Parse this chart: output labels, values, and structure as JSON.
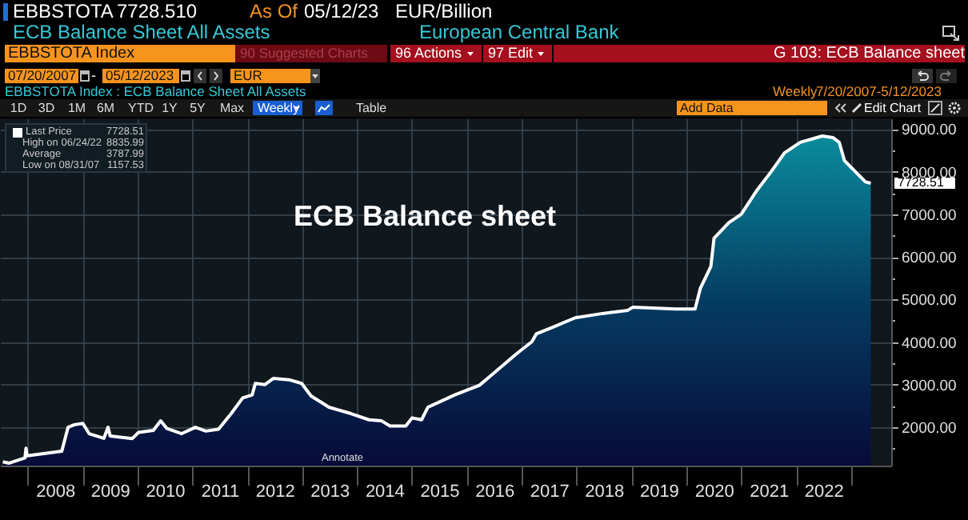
{
  "chart_data": {
    "type": "area",
    "title": "ECB Balance sheet",
    "x": [
      "2007-07-20",
      "2007-08-31",
      "2007-12-14",
      "2007-12-21",
      "2007-12-28",
      "2008-08-15",
      "2008-09-26",
      "2008-11-07",
      "2009-01-02",
      "2009-02-13",
      "2009-05-22",
      "2009-06-19",
      "2009-07-03",
      "2009-11-27",
      "2010-01-08",
      "2010-04-16",
      "2010-06-04",
      "2010-07-16",
      "2010-10-22",
      "2011-01-21",
      "2011-04-01",
      "2011-06-24",
      "2011-09-16",
      "2011-12-02",
      "2012-02-03",
      "2012-02-24",
      "2012-04-27",
      "2012-06-22",
      "2012-10-05",
      "2012-12-28",
      "2013-03-01",
      "2013-06-28",
      "2013-11-22",
      "2014-03-21",
      "2014-06-13",
      "2014-08-08",
      "2014-11-21",
      "2015-01-02",
      "2015-03-06",
      "2015-04-17",
      "2015-10-16",
      "2016-03-25",
      "2016-06-17",
      "2016-11-25",
      "2017-03-10",
      "2017-04-07",
      "2017-07-28",
      "2017-12-22",
      "2018-06-22",
      "2018-12-07",
      "2019-01-11",
      "2019-10-25",
      "2020-02-28",
      "2020-04-03",
      "2020-06-12",
      "2020-07-03",
      "2020-10-09",
      "2020-12-31",
      "2021-04-16",
      "2021-07-16",
      "2021-10-15",
      "2022-01-28",
      "2022-06-24",
      "2022-09-02",
      "2022-10-14",
      "2022-11-18",
      "2023-01-27",
      "2023-04-07",
      "2023-05-12"
    ],
    "series": [
      {
        "name": "Last Price",
        "color": "#ffffff",
        "values": [
          1190,
          1157.53,
          1280,
          1510,
          1330,
          1440,
          2000,
          2060,
          2090,
          1850,
          1740,
          2000,
          1795,
          1735,
          1880,
          1925,
          2150,
          1970,
          1850,
          2000,
          1910,
          1955,
          2320,
          2690,
          2760,
          3030,
          3000,
          3145,
          3115,
          3030,
          2735,
          2470,
          2320,
          2175,
          2150,
          2030,
          2030,
          2220,
          2175,
          2470,
          2765,
          2985,
          3235,
          3720,
          4010,
          4190,
          4350,
          4570,
          4670,
          4745,
          4820,
          4775,
          4775,
          5260,
          5775,
          6435,
          6800,
          7000,
          7570,
          7990,
          8440,
          8690,
          8835.99,
          8800,
          8690,
          8260,
          8010,
          7760,
          7728.51
        ]
      }
    ],
    "xlim": [
      "2007-07-01",
      "2023-09-25"
    ],
    "xticks": [
      {
        "value": "2008-01-01",
        "label": null
      },
      {
        "value": "2008-07-01",
        "label": "2008"
      },
      {
        "value": "2009-01-01",
        "label": null
      },
      {
        "value": "2009-07-01",
        "label": "2009"
      },
      {
        "value": "2010-01-01",
        "label": null
      },
      {
        "value": "2010-07-01",
        "label": "2010"
      },
      {
        "value": "2011-01-01",
        "label": null
      },
      {
        "value": "2011-07-01",
        "label": "2011"
      },
      {
        "value": "2012-01-01",
        "label": null
      },
      {
        "value": "2012-07-01",
        "label": "2012"
      },
      {
        "value": "2013-01-01",
        "label": null
      },
      {
        "value": "2013-07-01",
        "label": "2013"
      },
      {
        "value": "2014-01-01",
        "label": null
      },
      {
        "value": "2014-07-01",
        "label": "2014"
      },
      {
        "value": "2015-01-01",
        "label": null
      },
      {
        "value": "2015-07-01",
        "label": "2015"
      },
      {
        "value": "2016-01-01",
        "label": null
      },
      {
        "value": "2016-07-01",
        "label": "2016"
      },
      {
        "value": "2017-01-01",
        "label": null
      },
      {
        "value": "2017-07-01",
        "label": "2017"
      },
      {
        "value": "2018-01-01",
        "label": null
      },
      {
        "value": "2018-07-01",
        "label": "2018"
      },
      {
        "value": "2019-01-01",
        "label": null
      },
      {
        "value": "2019-07-01",
        "label": "2019"
      },
      {
        "value": "2020-01-01",
        "label": null
      },
      {
        "value": "2020-07-01",
        "label": "2020"
      },
      {
        "value": "2021-01-01",
        "label": null
      },
      {
        "value": "2021-07-01",
        "label": "2021"
      },
      {
        "value": "2022-01-01",
        "label": null
      },
      {
        "value": "2022-07-01",
        "label": "2022"
      },
      {
        "value": "2023-01-01",
        "label": null
      }
    ],
    "ylim": [
      1100,
      9250
    ],
    "yticks": [
      {
        "value": 1500,
        "label": null
      },
      {
        "value": 2000,
        "label": "2000.00"
      },
      {
        "value": 2500,
        "label": null
      },
      {
        "value": 3000,
        "label": "3000.00"
      },
      {
        "value": 3500,
        "label": null
      },
      {
        "value": 4000,
        "label": "4000.00"
      },
      {
        "value": 4500,
        "label": null
      },
      {
        "value": 5000,
        "label": "5000.00"
      },
      {
        "value": 5500,
        "label": null
      },
      {
        "value": 6000,
        "label": "6000.00"
      },
      {
        "value": 6500,
        "label": null
      },
      {
        "value": 7000,
        "label": "7000.00"
      },
      {
        "value": 7500,
        "label": null
      },
      {
        "value": 8000,
        "label": "8000.00"
      },
      {
        "value": 8500,
        "label": null
      },
      {
        "value": 9000,
        "label": "9000.00"
      }
    ],
    "grid": true,
    "legend": "top left",
    "annotations": [
      "EBBSTOTA",
      "7728.510",
      "As Of",
      "05/12/23",
      "EUR/Billion",
      "ECB Balance Sheet All Assets",
      "European Central Bank",
      "EBBSTOTA Index",
      "90 Suggested Charts",
      "96 Actions",
      "97 Edit",
      "G 103: ECB Balance sheet",
      "07/20/2007",
      "-",
      "05/12/2023",
      "EUR",
      "EBBSTOTA Index : ECB Balance Sheet All Assets",
      "Weekly",
      "7/20/2007-5/12/2023",
      "1D",
      "3D",
      "1M",
      "6M",
      "YTD",
      "1Y",
      "5Y",
      "Max",
      "Weekly",
      "Table",
      "Add Data",
      "Edit Chart",
      "7728.51",
      "High on 06/24/22",
      "8835.99",
      "Average",
      "3787.99",
      "Low on 08/31/07",
      "1157.53",
      "Annotate",
      {
        "text": "7728.51",
        "x": "2023-05-12",
        "y": 7728.51
      }
    ]
  }
}
